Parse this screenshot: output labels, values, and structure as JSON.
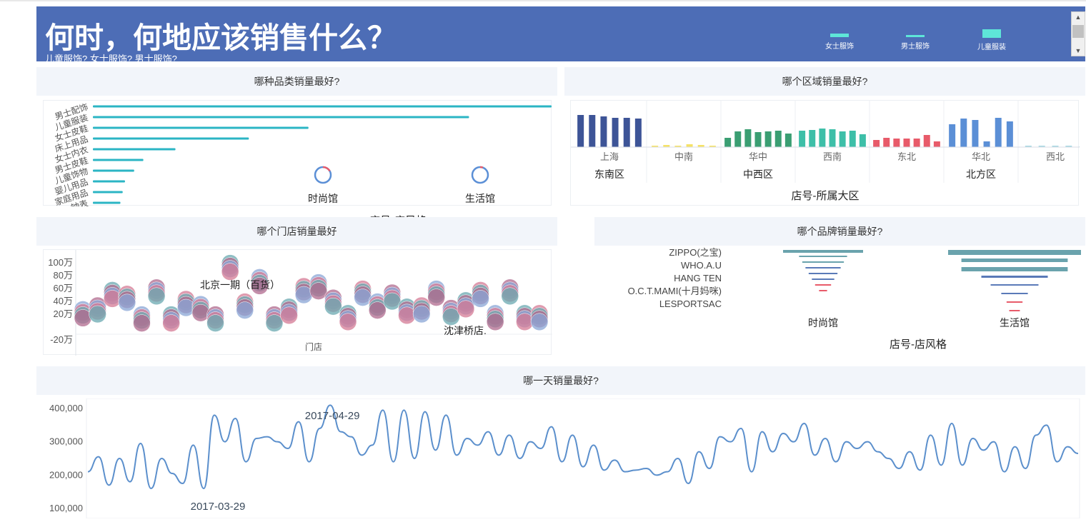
{
  "header": {
    "title": "何时，何地应该销售什么？",
    "subtitle": "儿童服饰? 女士服饰? 男士服饰?",
    "legend": [
      {
        "label": "女士服饰",
        "color": "#5ee6d8"
      },
      {
        "label": "男士服饰",
        "color": "#5ee6d8"
      },
      {
        "label": "儿童服装",
        "color": "#5ee6d8"
      }
    ]
  },
  "panels": {
    "category": {
      "title": "哪种品类销量最好?",
      "x_axis_title": "店号-店风格",
      "chart_data": {
        "type": "bar",
        "categories": [
          "男士配饰",
          "儿童服装",
          "女士皮鞋",
          "床上用品",
          "女士内衣",
          "男士皮鞋",
          "儿童饰物",
          "婴儿用品",
          "家庭用品",
          "钟表"
        ],
        "values": [
          100,
          82,
          47,
          34,
          18,
          11,
          9,
          7,
          6.5,
          6
        ],
        "bar_color": "#2bb5c4",
        "donut_labels": [
          "时尚馆",
          "生活馆"
        ]
      }
    },
    "region": {
      "title": "哪个区域销量最好?",
      "x_axis_title": "店号-所属大区",
      "chart_data": {
        "type": "bar",
        "groups": [
          {
            "name": "东南区",
            "regions": [
              {
                "name": "上海",
                "color": "#3d5497",
                "values": [
                  45,
                  45,
                  43,
                  41,
                  41,
                  40
                ]
              }
            ]
          },
          {
            "name": "中西区",
            "regions": [
              {
                "name": "中南",
                "color": "#f6e266",
                "values": [
                  2,
                  3,
                  2,
                  4,
                  3,
                  2
                ]
              },
              {
                "name": "华中",
                "color": "#3a9e72",
                "values": [
                  13,
                  22,
                  25,
                  21,
                  22,
                  23,
                  19
                ]
              },
              {
                "name": "西南",
                "color": "#3dbfa8",
                "values": [
                  23,
                  24,
                  26,
                  25,
                  22,
                  23,
                  18
                ]
              }
            ]
          },
          {
            "name": "北方区",
            "regions": [
              {
                "name": "东北",
                "color": "#e85b6a",
                "values": [
                  10,
                  13,
                  12,
                  12,
                  12,
                  17,
                  8
                ]
              },
              {
                "name": "华北",
                "color": "#5b8fd6",
                "values": [
                  32,
                  40,
                  38,
                  8,
                  41,
                  36
                ]
              },
              {
                "name": "西北",
                "color": "#a8d8e2",
                "values": [
                  2,
                  2,
                  2,
                  2,
                  1
                ]
              }
            ]
          }
        ]
      }
    },
    "store": {
      "title": "哪个门店销量最好",
      "x_axis_title": "门店",
      "chart_data": {
        "type": "scatter",
        "y_ticks": [
          "100万",
          "80万",
          "60万",
          "40万",
          "20万",
          "-20万"
        ],
        "annotations": [
          "北京一期（百货）",
          "沈津桥店."
        ],
        "unit": "万",
        "points": [
          {
            "x": 1,
            "y": 14
          },
          {
            "x": 2,
            "y": 20
          },
          {
            "x": 3,
            "y": 44
          },
          {
            "x": 4,
            "y": 38
          },
          {
            "x": 5,
            "y": 6
          },
          {
            "x": 6,
            "y": 48
          },
          {
            "x": 7,
            "y": 6
          },
          {
            "x": 8,
            "y": 30
          },
          {
            "x": 9,
            "y": 22
          },
          {
            "x": 10,
            "y": 6
          },
          {
            "x": 11,
            "y": 86
          },
          {
            "x": 12,
            "y": 26
          },
          {
            "x": 13,
            "y": 64
          },
          {
            "x": 14,
            "y": 6
          },
          {
            "x": 15,
            "y": 18
          },
          {
            "x": 16,
            "y": 50
          },
          {
            "x": 17,
            "y": 56
          },
          {
            "x": 18,
            "y": 32
          },
          {
            "x": 19,
            "y": 8
          },
          {
            "x": 20,
            "y": 46
          },
          {
            "x": 21,
            "y": 26
          },
          {
            "x": 22,
            "y": 40
          },
          {
            "x": 23,
            "y": 18
          },
          {
            "x": 24,
            "y": 20
          },
          {
            "x": 25,
            "y": 46
          },
          {
            "x": 26,
            "y": 16
          },
          {
            "x": 27,
            "y": 28
          },
          {
            "x": 28,
            "y": 44
          },
          {
            "x": 29,
            "y": 8
          },
          {
            "x": 30,
            "y": 48
          },
          {
            "x": 31,
            "y": 8
          },
          {
            "x": 32,
            "y": 8
          }
        ],
        "colors": [
          "#b06a8e",
          "#6aa8b0",
          "#d47a94",
          "#8aa6d6"
        ]
      }
    },
    "brand": {
      "title": "哪个品牌销量最好?",
      "x_axis_title": "店号-店风格",
      "chart_data": {
        "type": "bar",
        "categories": [
          "ZIPPO(之宝)",
          "WHO.A.U",
          "HANG TEN",
          "O.C.T.MAMI(十月妈咪)",
          "LESPORTSAC"
        ],
        "columns": [
          {
            "name": "时尚馆",
            "values": [
              100,
              60,
              52,
              44,
              36,
              28,
              20,
              10
            ]
          },
          {
            "name": "生活馆",
            "values": [
              100,
              80,
              80,
              50,
              36,
              20,
              12,
              8
            ]
          }
        ],
        "colors": [
          "#6aa3ad",
          "#5a7ab8",
          "#e85b6a"
        ]
      }
    },
    "daily": {
      "title": "哪一天销量最好?",
      "chart_data": {
        "type": "line",
        "y_ticks": [
          "400,000",
          "300,000",
          "200,000",
          "100,000"
        ],
        "ylim": [
          100000,
          400000
        ],
        "annotations": [
          {
            "label": "2017-04-29",
            "kind": "max"
          },
          {
            "label": "2017-03-29",
            "kind": "min"
          }
        ],
        "color": "#5b8fcc",
        "values": [
          210000,
          255000,
          170000,
          250000,
          180000,
          295000,
          160000,
          250000,
          205000,
          175000,
          290000,
          160000,
          380000,
          300000,
          370000,
          240000,
          310000,
          315000,
          300000,
          280000,
          360000,
          240000,
          340000,
          410000,
          330000,
          315000,
          260000,
          290000,
          395000,
          240000,
          395000,
          250000,
          390000,
          275000,
          380000,
          260000,
          310000,
          290000,
          330000,
          260000,
          320000,
          250000,
          300000,
          280000,
          345000,
          240000,
          320000,
          225000,
          290000,
          215000,
          245000,
          210000,
          215000,
          220000,
          200000,
          210000,
          250000,
          175000,
          270000,
          220000,
          315000,
          300000,
          340000,
          210000,
          330000,
          270000,
          325000,
          300000,
          355000,
          260000,
          310000,
          240000,
          300000,
          280000,
          300000,
          270000,
          250000,
          220000,
          270000,
          215000,
          320000,
          230000,
          355000,
          230000,
          310000,
          275000,
          300000,
          210000,
          285000,
          220000,
          320000,
          350000,
          240000,
          285000,
          265000
        ]
      }
    }
  }
}
